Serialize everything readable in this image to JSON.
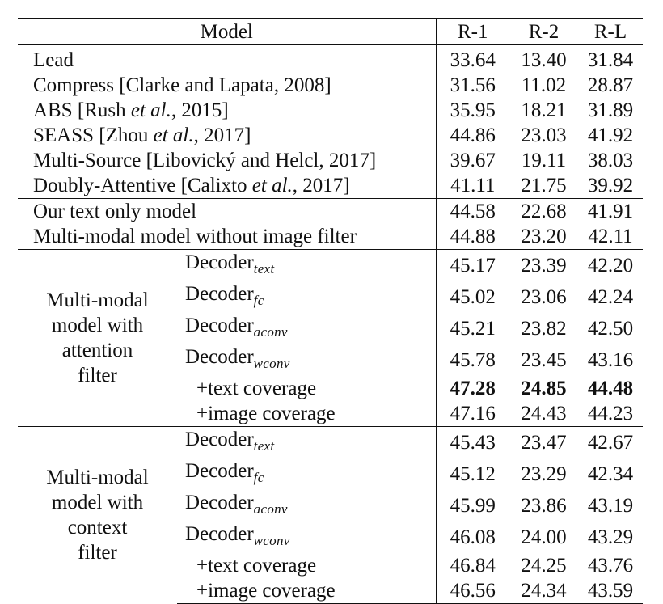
{
  "header": {
    "model": "Model",
    "r1": "R-1",
    "r2": "R-2",
    "rl": "R-L"
  },
  "baselines": [
    {
      "name": "Lead",
      "r1": "33.64",
      "r2": "13.40",
      "rl": "31.84"
    },
    {
      "name": "Compress [Clarke and Lapata, 2008]",
      "r1": "31.56",
      "r2": "11.02",
      "rl": "28.87"
    },
    {
      "name_pre": "ABS [Rush ",
      "name_it": "et al.",
      "name_post": ", 2015]",
      "r1": "35.95",
      "r2": "18.21",
      "rl": "31.89"
    },
    {
      "name_pre": "SEASS [Zhou ",
      "name_it": "et al.",
      "name_post": ", 2017]",
      "r1": "44.86",
      "r2": "23.03",
      "rl": "41.92"
    },
    {
      "name": "Multi-Source [Libovický and Helcl, 2017]",
      "r1": "39.67",
      "r2": "19.11",
      "rl": "38.03"
    },
    {
      "name_pre": "Doubly-Attentive [Calixto ",
      "name_it": "et al.",
      "name_post": ", 2017]",
      "r1": "41.11",
      "r2": "21.75",
      "rl": "39.92"
    }
  ],
  "ours": [
    {
      "name": "Our text only model",
      "r1": "44.58",
      "r2": "22.68",
      "rl": "41.91"
    },
    {
      "name": "Multi-modal model without image filter",
      "r1": "44.88",
      "r2": "23.20",
      "rl": "42.11"
    }
  ],
  "attention_group": {
    "label_lines": [
      "Multi-modal",
      "model with",
      "attention",
      "filter"
    ],
    "rows": [
      {
        "base": "Decoder",
        "sub": "text",
        "r1": "45.17",
        "r2": "23.39",
        "rl": "42.20"
      },
      {
        "base": "Decoder",
        "sub": "fc",
        "r1": "45.02",
        "r2": "23.06",
        "rl": "42.24"
      },
      {
        "base": "Decoder",
        "sub": "aconv",
        "r1": "45.21",
        "r2": "23.82",
        "rl": "42.50"
      },
      {
        "base": "Decoder",
        "sub": "wconv",
        "r1": "45.78",
        "r2": "23.45",
        "rl": "43.16"
      },
      {
        "base": "+text coverage",
        "r1": "47.28",
        "r2": "24.85",
        "rl": "44.48"
      },
      {
        "base": "+image coverage",
        "r1": "47.16",
        "r2": "24.43",
        "rl": "44.23"
      }
    ]
  },
  "context_group": {
    "label_lines": [
      "Multi-modal",
      "model with",
      "context",
      "filter"
    ],
    "rows": [
      {
        "base": "Decoder",
        "sub": "text",
        "r1": "45.43",
        "r2": "23.47",
        "rl": "42.67"
      },
      {
        "base": "Decoder",
        "sub": "fc",
        "r1": "45.12",
        "r2": "23.29",
        "rl": "42.34"
      },
      {
        "base": "Decoder",
        "sub": "aconv",
        "r1": "45.99",
        "r2": "23.86",
        "rl": "43.19"
      },
      {
        "base": "Decoder",
        "sub": "wconv",
        "r1": "46.08",
        "r2": "24.00",
        "rl": "43.29"
      },
      {
        "base": "+text coverage",
        "r1": "46.84",
        "r2": "24.25",
        "rl": "43.76"
      },
      {
        "base": "+image coverage",
        "r1": "46.56",
        "r2": "24.34",
        "rl": "43.59"
      }
    ]
  }
}
